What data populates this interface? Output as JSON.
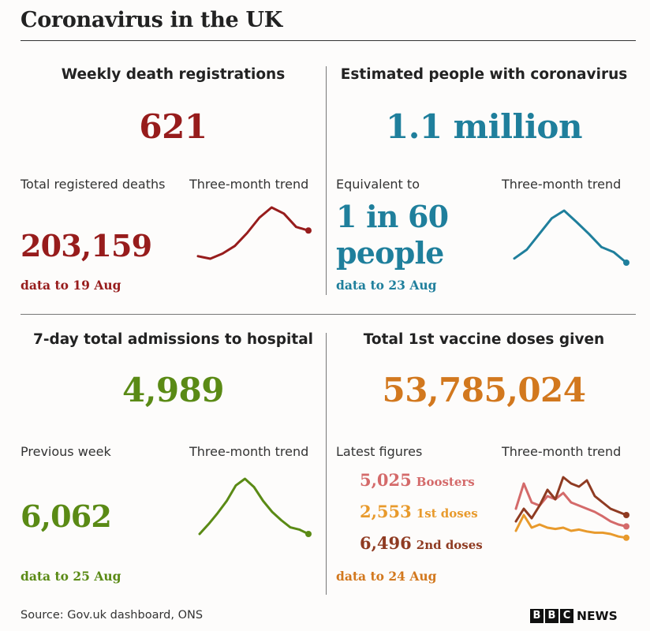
{
  "title": "Coronavirus in the UK",
  "colors": {
    "deaths": "#971c1c",
    "infections": "#1f7f9c",
    "hospital": "#5a8a15",
    "vaccine": "#d2781e",
    "boosters": "#d46a6a",
    "first": "#e89a2c",
    "second": "#8f3b22"
  },
  "panels": {
    "deaths": {
      "title": "Weekly death registrations",
      "value": "621",
      "sub_label": "Total registered deaths",
      "trend_label": "Three-month trend",
      "sub_value": "203,159",
      "note": "data to 19 Aug"
    },
    "infections": {
      "title": "Estimated people with coronavirus",
      "value": "1.1 million",
      "sub_label": "Equivalent to",
      "trend_label": "Three-month trend",
      "sub_value_line1": "1 in 60",
      "sub_value_line2": "people",
      "note": "data to 23 Aug"
    },
    "hospital": {
      "title": "7-day total admissions to hospital",
      "value": "4,989",
      "sub_label": "Previous week",
      "trend_label": "Three-month trend",
      "sub_value": "6,062",
      "note": "data to 25 Aug"
    },
    "vaccine": {
      "title": "Total 1st vaccine doses given",
      "value": "53,785,024",
      "sub_label": "Latest figures",
      "trend_label": "Three-month trend",
      "rows": [
        {
          "value": "5,025",
          "label": "Boosters"
        },
        {
          "value": "2,553",
          "label": "1st doses"
        },
        {
          "value": "6,496",
          "label": "2nd doses"
        }
      ],
      "note": "data to 24 Aug"
    }
  },
  "source": "Source: Gov.uk dashboard, ONS",
  "logo": {
    "letters": [
      "B",
      "B",
      "C"
    ],
    "text": "NEWS"
  },
  "chart_data": [
    {
      "type": "line",
      "series": [
        {
          "values": [
            0.05,
            0.0,
            0.1,
            0.25,
            0.5,
            0.8,
            1.0,
            0.88,
            0.62,
            0.55
          ]
        }
      ]
    },
    {
      "type": "line",
      "series": [
        {
          "values": [
            0.08,
            0.25,
            0.55,
            0.85,
            1.0,
            0.78,
            0.55,
            0.3,
            0.2,
            0.0
          ]
        }
      ]
    },
    {
      "type": "line",
      "series": [
        {
          "values": [
            0.0,
            0.18,
            0.38,
            0.6,
            0.88,
            1.0,
            0.85,
            0.6,
            0.4,
            0.25,
            0.12,
            0.08,
            0.0
          ]
        }
      ]
    },
    {
      "type": "line",
      "series": [
        {
          "name": "Boosters",
          "values": [
            0.5,
            0.9,
            0.6,
            0.55,
            0.7,
            0.65,
            0.75,
            0.6,
            0.55,
            0.5,
            0.45,
            0.38,
            0.3,
            0.25,
            0.22
          ]
        },
        {
          "name": "1st doses",
          "values": [
            0.15,
            0.4,
            0.2,
            0.25,
            0.2,
            0.18,
            0.2,
            0.15,
            0.17,
            0.14,
            0.12,
            0.12,
            0.1,
            0.06,
            0.04
          ]
        },
        {
          "name": "2nd doses",
          "values": [
            0.3,
            0.5,
            0.35,
            0.55,
            0.8,
            0.65,
            1.0,
            0.9,
            0.85,
            0.95,
            0.7,
            0.6,
            0.5,
            0.45,
            0.4
          ]
        }
      ]
    }
  ]
}
